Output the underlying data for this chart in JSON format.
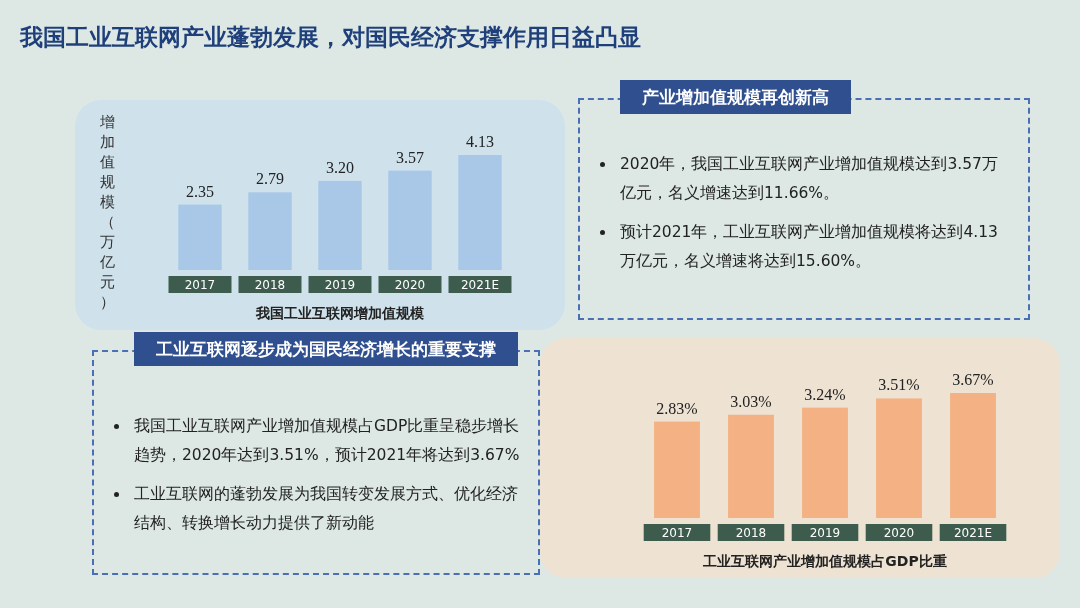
{
  "chart_data": [
    {
      "type": "other",
      "title": "我国工业互联网产业蓬勃发展，对国民经济支撑作用日益凸显"
    },
    {
      "type": "bar",
      "title": "我国工业互联网增加值规模",
      "ylabel": "增加值规模（万亿元）",
      "categories": [
        "2017",
        "2018",
        "2019",
        "2020",
        "2021E"
      ],
      "values": [
        2.35,
        2.79,
        3.2,
        3.57,
        4.13
      ],
      "value_labels": [
        "2.35",
        "2.79",
        "3.20",
        "3.57",
        "4.13"
      ],
      "color": "#a9c8e8"
    },
    {
      "type": "other",
      "title": "产业增加值规模再创新高",
      "annotations": [
        "2020年，我国工业互联网产业增加值规模达到3.57万亿元，名义增速达到11.66%。",
        "预计2021年，工业互联网产业增加值规模将达到4.13万亿元，名义增速将达到15.60%。"
      ]
    },
    {
      "type": "other",
      "title": "工业互联网逐步成为国民经济增长的重要支撑",
      "annotations": [
        "我国工业互联网产业增加值规模占GDP比重呈稳步增长趋势，2020年达到3.51%，预计2021年将达到3.67%",
        "工业互联网的蓬勃发展为我国转变发展方式、优化经济结构、转换增长动力提供了新动能"
      ]
    },
    {
      "type": "bar",
      "title": "工业互联网产业增加值规模占GDP比重",
      "categories": [
        "2017",
        "2018",
        "2019",
        "2020",
        "2021E"
      ],
      "values": [
        2.83,
        3.03,
        3.24,
        3.51,
        3.67
      ],
      "value_labels": [
        "2.83%",
        "3.03%",
        "3.24%",
        "3.51%",
        "3.67%"
      ],
      "color": "#f4b183"
    }
  ]
}
